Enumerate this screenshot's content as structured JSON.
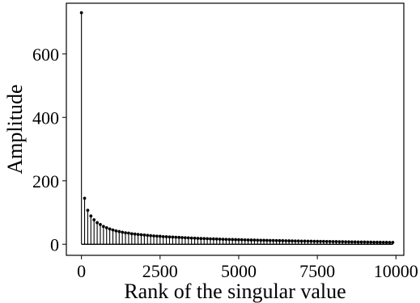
{
  "chart_data": {
    "type": "stem",
    "xlabel": "Rank of the singular value",
    "ylabel": "Amplitude",
    "xlim": [
      -480,
      10250
    ],
    "ylim": [
      -35,
      760
    ],
    "xticks": [
      0,
      2500,
      5000,
      7500,
      10000
    ],
    "xtick_labels": [
      "0",
      "2500",
      "5000",
      "7500",
      "10000"
    ],
    "yticks": [
      0,
      200,
      400,
      600
    ],
    "ytick_labels": [
      "0",
      "200",
      "400",
      "600"
    ],
    "grid": false,
    "legend": "none",
    "colors": {
      "stem": "#000000",
      "axes": "#000000",
      "background": "#ffffff"
    },
    "x": [
      0,
      100,
      200,
      300,
      400,
      500,
      600,
      700,
      800,
      900,
      1000,
      1100,
      1200,
      1300,
      1400,
      1500,
      1600,
      1700,
      1800,
      1900,
      2000,
      2100,
      2200,
      2300,
      2400,
      2500,
      2600,
      2700,
      2800,
      2900,
      3000,
      3100,
      3200,
      3300,
      3400,
      3500,
      3600,
      3700,
      3800,
      3900,
      4000,
      4100,
      4200,
      4300,
      4400,
      4500,
      4600,
      4700,
      4800,
      4900,
      5000,
      5100,
      5200,
      5300,
      5400,
      5500,
      5600,
      5700,
      5800,
      5900,
      6000,
      6100,
      6200,
      6300,
      6400,
      6500,
      6600,
      6700,
      6800,
      6900,
      7000,
      7100,
      7200,
      7300,
      7400,
      7500,
      7600,
      7700,
      7800,
      7900,
      8000,
      8100,
      8200,
      8300,
      8400,
      8500,
      8600,
      8700,
      8800,
      8900,
      9000,
      9100,
      9200,
      9300,
      9400,
      9500,
      9600,
      9700,
      9800,
      9900
    ],
    "values": [
      730,
      145,
      107,
      89,
      77,
      68,
      62,
      56,
      52,
      48,
      45,
      42,
      40,
      38,
      36,
      35,
      33,
      32,
      31,
      30,
      29,
      28,
      27,
      26,
      25.5,
      25,
      24,
      23.5,
      23,
      22.5,
      22,
      21.5,
      21,
      20.5,
      20,
      19.5,
      19,
      18.5,
      18,
      17.8,
      17.5,
      17,
      16.7,
      16.4,
      16,
      15.7,
      15.4,
      15.1,
      14.8,
      14.5,
      14.2,
      14,
      13.7,
      13.5,
      13.2,
      13,
      12.8,
      12.5,
      12.3,
      12.1,
      11.9,
      11.7,
      11.5,
      11.3,
      11.1,
      10.9,
      10.7,
      10.5,
      10.3,
      10.1,
      10,
      9.8,
      9.6,
      9.5,
      9.3,
      9.1,
      9,
      8.8,
      8.6,
      8.5,
      8.3,
      8.2,
      8,
      7.9,
      7.7,
      7.6,
      7.4,
      7.3,
      7.1,
      7,
      6.9,
      6.7,
      6.6,
      6.5,
      6.3,
      6.2,
      6.1,
      6,
      5.8,
      5.7
    ]
  }
}
